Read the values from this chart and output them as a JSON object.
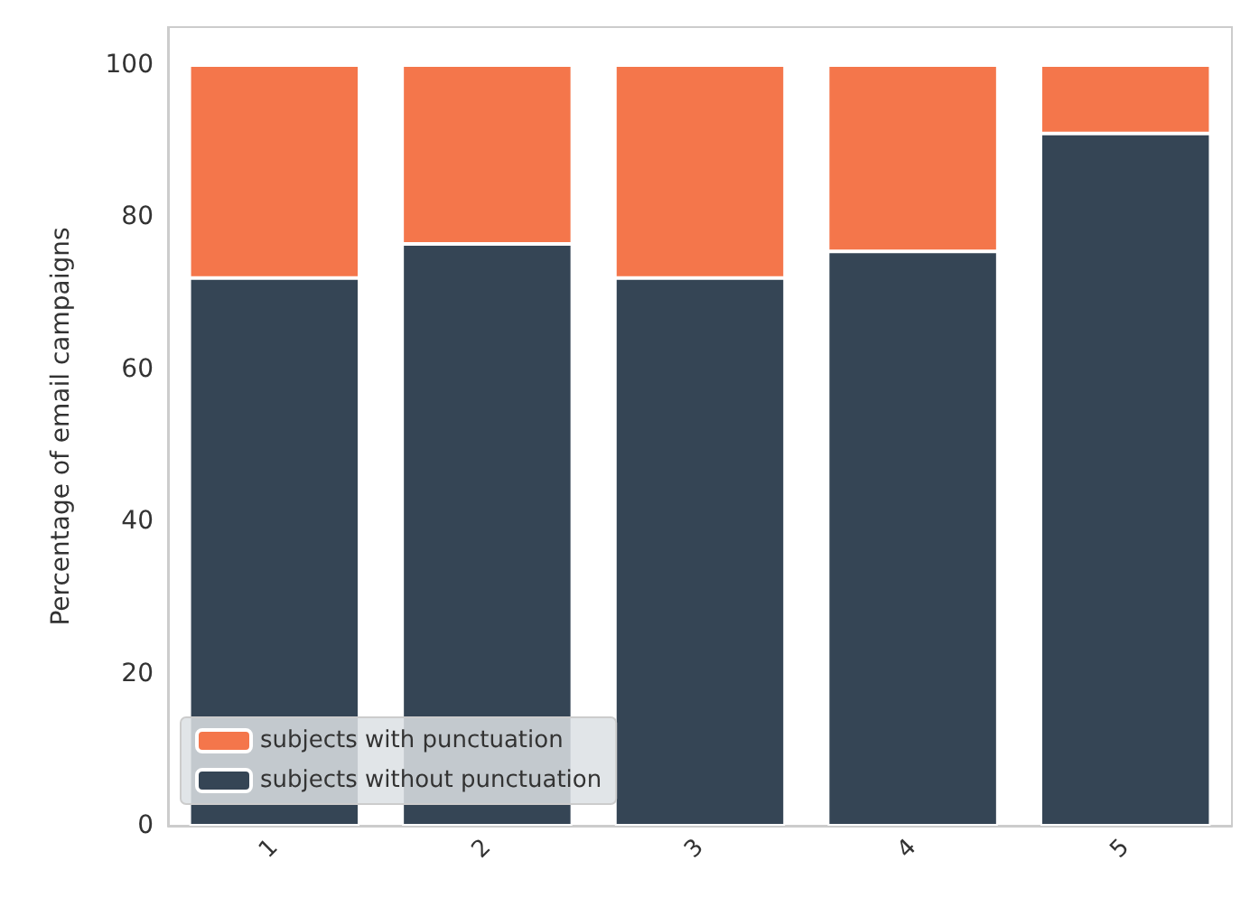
{
  "chart_data": {
    "type": "bar",
    "stacked": true,
    "ylabel": "Percentage of email campaigns",
    "categories": [
      "1",
      "2",
      "3",
      "4",
      "5"
    ],
    "series": [
      {
        "name": "subjects without punctuation",
        "color": "#354555",
        "values": [
          72,
          76.5,
          72,
          75.5,
          91
        ]
      },
      {
        "name": "subjects with punctuation",
        "color": "#f4764b",
        "values": [
          28,
          23.5,
          28,
          24.5,
          9
        ]
      }
    ],
    "ylim": [
      0,
      105
    ],
    "yticks": [
      0,
      20,
      40,
      60,
      80,
      100
    ],
    "grid": false,
    "legend": "bottom left"
  }
}
